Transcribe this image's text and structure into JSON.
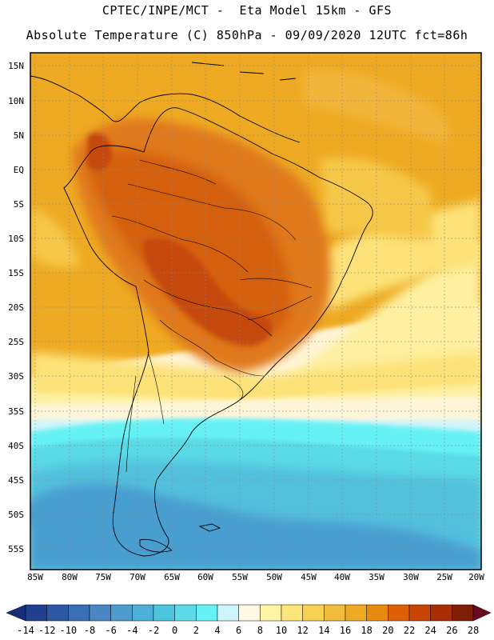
{
  "title": {
    "line1": "CPTEC/INPE/MCT -  Eta Model 15km - GFS",
    "line2": "Absolute Temperature (C) 850hPa - 09/09/2020 12UTC fct=86h"
  },
  "map": {
    "lat_labels": [
      "15N",
      "10N",
      "5N",
      "EQ",
      "5S",
      "10S",
      "15S",
      "20S",
      "25S",
      "30S",
      "35S",
      "40S",
      "45S",
      "50S",
      "55S"
    ],
    "lon_labels": [
      "85W",
      "80W",
      "75W",
      "70W",
      "65W",
      "60W",
      "55W",
      "50W",
      "45W",
      "40W",
      "35W",
      "30W",
      "25W",
      "20W"
    ],
    "grid_style": "dotted"
  },
  "colorbar": {
    "labels": [
      "-14",
      "-12",
      "-10",
      "-8",
      "-6",
      "-4",
      "-2",
      "0",
      "2",
      "4",
      "6",
      "8",
      "10",
      "12",
      "14",
      "16",
      "18",
      "20",
      "22",
      "24",
      "26",
      "28"
    ],
    "colors": [
      "#1f3f8f",
      "#2b57a3",
      "#3a6fb5",
      "#4a86c3",
      "#4e9ccd",
      "#4eb0d8",
      "#4ec5e0",
      "#5cdaea",
      "#66f2f5",
      "#cdf3fb",
      "#fff8e2",
      "#fef6a6",
      "#fce57a",
      "#f8d152",
      "#f2bc3c",
      "#eeaa22",
      "#e88b10",
      "#dd5f08",
      "#c84506",
      "#a92e05",
      "#7e1e04"
    ],
    "left_arrow_color": "#142e79",
    "right_arrow_color": "#6a0a1e",
    "units": "C"
  },
  "field_colors": {
    "cold_deep": "#4a9ed0",
    "cold": "#52c0dc",
    "cool": "#5ad9e6",
    "cyan": "#66f2f5",
    "pale_cyan": "#d0f4fb",
    "cream": "#fff5d8",
    "pale_yellow": "#fef0a0",
    "yellow": "#fce278",
    "gold": "#f6c84a",
    "orange_light": "#f1b53a",
    "orange": "#eeaa22",
    "orange_dark": "#e0791a",
    "red_orange": "#d4600e",
    "red": "#c54a0c"
  }
}
